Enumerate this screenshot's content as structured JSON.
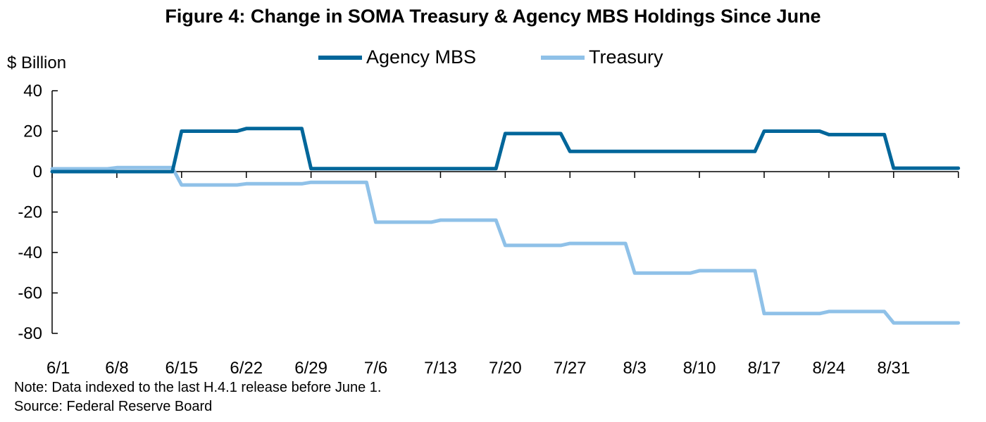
{
  "chart_data": {
    "type": "line",
    "title": "Figure 4: Change in SOMA Treasury & Agency MBS Holdings Since June",
    "ylabel": "$ Billion",
    "xlabel": "",
    "ylim": [
      -80,
      40
    ],
    "yticks": [
      40,
      20,
      0,
      -20,
      -40,
      -60,
      -80
    ],
    "xticks": [
      "6/1",
      "6/8",
      "6/15",
      "6/22",
      "6/29",
      "7/6",
      "7/13",
      "7/20",
      "7/27",
      "8/3",
      "8/10",
      "8/17",
      "8/24",
      "8/31"
    ],
    "xrange": [
      "6/1",
      "9/7"
    ],
    "grid": false,
    "legend_placement": "top-center",
    "series": [
      {
        "name": "Agency MBS",
        "color": "#00669a",
        "points": [
          [
            "6/1",
            0
          ],
          [
            "6/14",
            0
          ],
          [
            "6/15",
            20
          ],
          [
            "6/21",
            20
          ],
          [
            "6/22",
            21.3
          ],
          [
            "6/28",
            21.3
          ],
          [
            "6/29",
            1.5
          ],
          [
            "7/19",
            1.5
          ],
          [
            "7/20",
            18.8
          ],
          [
            "7/26",
            18.8
          ],
          [
            "7/27",
            10
          ],
          [
            "8/16",
            10
          ],
          [
            "8/17",
            20
          ],
          [
            "8/23",
            20
          ],
          [
            "8/24",
            18.3
          ],
          [
            "8/30",
            18.3
          ],
          [
            "8/31",
            1.7
          ],
          [
            "9/7",
            1.7
          ]
        ]
      },
      {
        "name": "Treasury",
        "color": "#8fc1e8",
        "points": [
          [
            "6/1",
            1.4
          ],
          [
            "6/7",
            1.4
          ],
          [
            "6/8",
            2
          ],
          [
            "6/14",
            2
          ],
          [
            "6/15",
            -6.6
          ],
          [
            "6/21",
            -6.6
          ],
          [
            "6/22",
            -6
          ],
          [
            "6/28",
            -6
          ],
          [
            "6/29",
            -5.3
          ],
          [
            "7/5",
            -5.3
          ],
          [
            "7/6",
            -25
          ],
          [
            "7/12",
            -25
          ],
          [
            "7/13",
            -24
          ],
          [
            "7/19",
            -24
          ],
          [
            "7/20",
            -36.5
          ],
          [
            "7/26",
            -36.5
          ],
          [
            "7/27",
            -35.5
          ],
          [
            "8/2",
            -35.5
          ],
          [
            "8/3",
            -50.2
          ],
          [
            "8/9",
            -50.2
          ],
          [
            "8/10",
            -49
          ],
          [
            "8/16",
            -49
          ],
          [
            "8/17",
            -70.2
          ],
          [
            "8/23",
            -70.2
          ],
          [
            "8/24",
            -69.2
          ],
          [
            "8/30",
            -69.2
          ],
          [
            "8/31",
            -74.8
          ],
          [
            "9/7",
            -74.8
          ]
        ]
      }
    ]
  },
  "notes": {
    "note": "Note: Data indexed to the last H.4.1 release before June 1.",
    "source": "Source: Federal Reserve Board"
  }
}
